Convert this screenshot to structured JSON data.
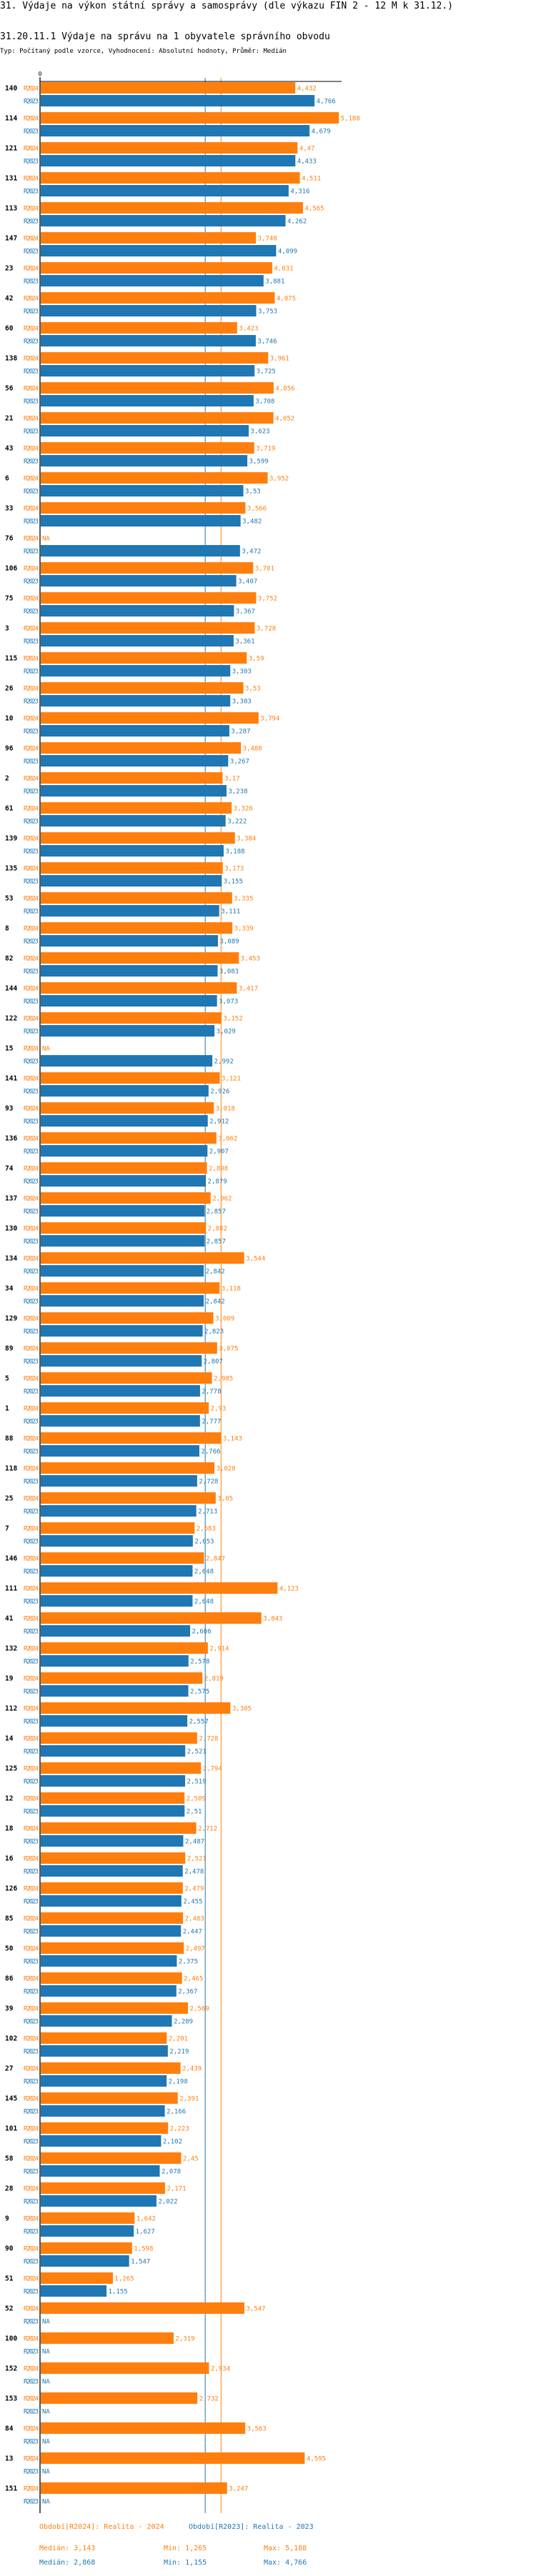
{
  "header": {
    "title": "31. Výdaje na výkon státní správy a samosprávy (dle výkazu FIN 2 - 12 M k 31.12.)",
    "subtitle": "31.20.11.1 Výdaje na správu na 1 obyvatele správního obvodu",
    "meta": "Typ: Počítaný podle vzorce, Vyhodnocení: Absolutní hodnoty, Průměr: Medián"
  },
  "chart_data": {
    "type": "bar",
    "orientation": "horizontal",
    "axis_tick_label": "0",
    "xlim": [
      0,
      5.188
    ],
    "na_label": "NA",
    "categories": [
      "140",
      "114",
      "121",
      "131",
      "113",
      "147",
      "23",
      "42",
      "60",
      "138",
      "56",
      "21",
      "43",
      "6",
      "33",
      "76",
      "106",
      "75",
      "3",
      "115",
      "26",
      "10",
      "96",
      "2",
      "61",
      "139",
      "135",
      "53",
      "8",
      "82",
      "144",
      "122",
      "15",
      "141",
      "93",
      "136",
      "74",
      "137",
      "130",
      "134",
      "34",
      "129",
      "89",
      "5",
      "1",
      "88",
      "118",
      "25",
      "7",
      "146",
      "111",
      "41",
      "132",
      "19",
      "112",
      "14",
      "125",
      "12",
      "18",
      "16",
      "126",
      "85",
      "50",
      "86",
      "39",
      "102",
      "27",
      "145",
      "101",
      "58",
      "28",
      "9",
      "90",
      "51",
      "52",
      "100",
      "152",
      "153",
      "84",
      "13",
      "151"
    ],
    "series": [
      {
        "name": "R2024",
        "color": "#ff7f0e",
        "median": 3.143,
        "values": [
          4.432,
          5.188,
          4.47,
          4.511,
          4.565,
          3.748,
          4.031,
          4.075,
          3.423,
          3.961,
          4.056,
          4.052,
          3.719,
          3.952,
          3.566,
          null,
          3.701,
          3.752,
          3.728,
          3.59,
          3.53,
          3.794,
          3.488,
          3.17,
          3.326,
          3.384,
          3.173,
          3.335,
          3.339,
          3.453,
          3.417,
          3.152,
          null,
          3.121,
          3.018,
          3.062,
          2.898,
          2.962,
          2.882,
          3.544,
          3.118,
          3.009,
          3.075,
          2.985,
          2.93,
          3.143,
          3.028,
          3.05,
          2.683,
          2.847,
          4.123,
          3.843,
          2.914,
          2.819,
          3.305,
          2.728,
          2.794,
          2.509,
          2.712,
          2.521,
          2.479,
          2.483,
          2.497,
          2.465,
          2.569,
          2.201,
          2.439,
          2.391,
          2.223,
          2.45,
          2.171,
          1.642,
          1.598,
          1.265,
          3.547,
          2.319,
          2.934,
          2.732,
          3.563,
          4.595,
          3.247
        ]
      },
      {
        "name": "R2023",
        "color": "#1f77b4",
        "median": 2.868,
        "values": [
          4.766,
          4.679,
          4.433,
          4.316,
          4.262,
          4.099,
          3.881,
          3.753,
          3.746,
          3.725,
          3.708,
          3.623,
          3.599,
          3.53,
          3.482,
          3.472,
          3.407,
          3.367,
          3.361,
          3.303,
          3.303,
          3.287,
          3.267,
          3.238,
          3.222,
          3.188,
          3.155,
          3.111,
          3.089,
          3.083,
          3.073,
          3.029,
          2.992,
          2.926,
          2.912,
          2.907,
          2.879,
          2.857,
          2.857,
          2.842,
          2.842,
          2.823,
          2.807,
          2.778,
          2.777,
          2.766,
          2.728,
          2.713,
          2.653,
          2.648,
          2.648,
          2.606,
          2.578,
          2.575,
          2.557,
          2.521,
          2.519,
          2.51,
          2.487,
          2.478,
          2.455,
          2.447,
          2.375,
          2.367,
          2.289,
          2.219,
          2.198,
          2.166,
          2.102,
          2.078,
          2.022,
          1.627,
          1.547,
          1.155,
          null,
          null,
          null,
          null,
          null,
          null,
          null
        ]
      }
    ]
  },
  "legend": {
    "r2024": "Období[R2024]: Realita - 2024",
    "r2023": "Období[R2023]: Realita - 2023"
  },
  "stats": {
    "r2024": {
      "median": "Medián: 3,143",
      "min": "Min: 1,265",
      "max": "Max: 5,188"
    },
    "r2023": {
      "median": "Medián: 2,868",
      "min": "Min: 1,155",
      "max": "Max: 4,766"
    }
  }
}
